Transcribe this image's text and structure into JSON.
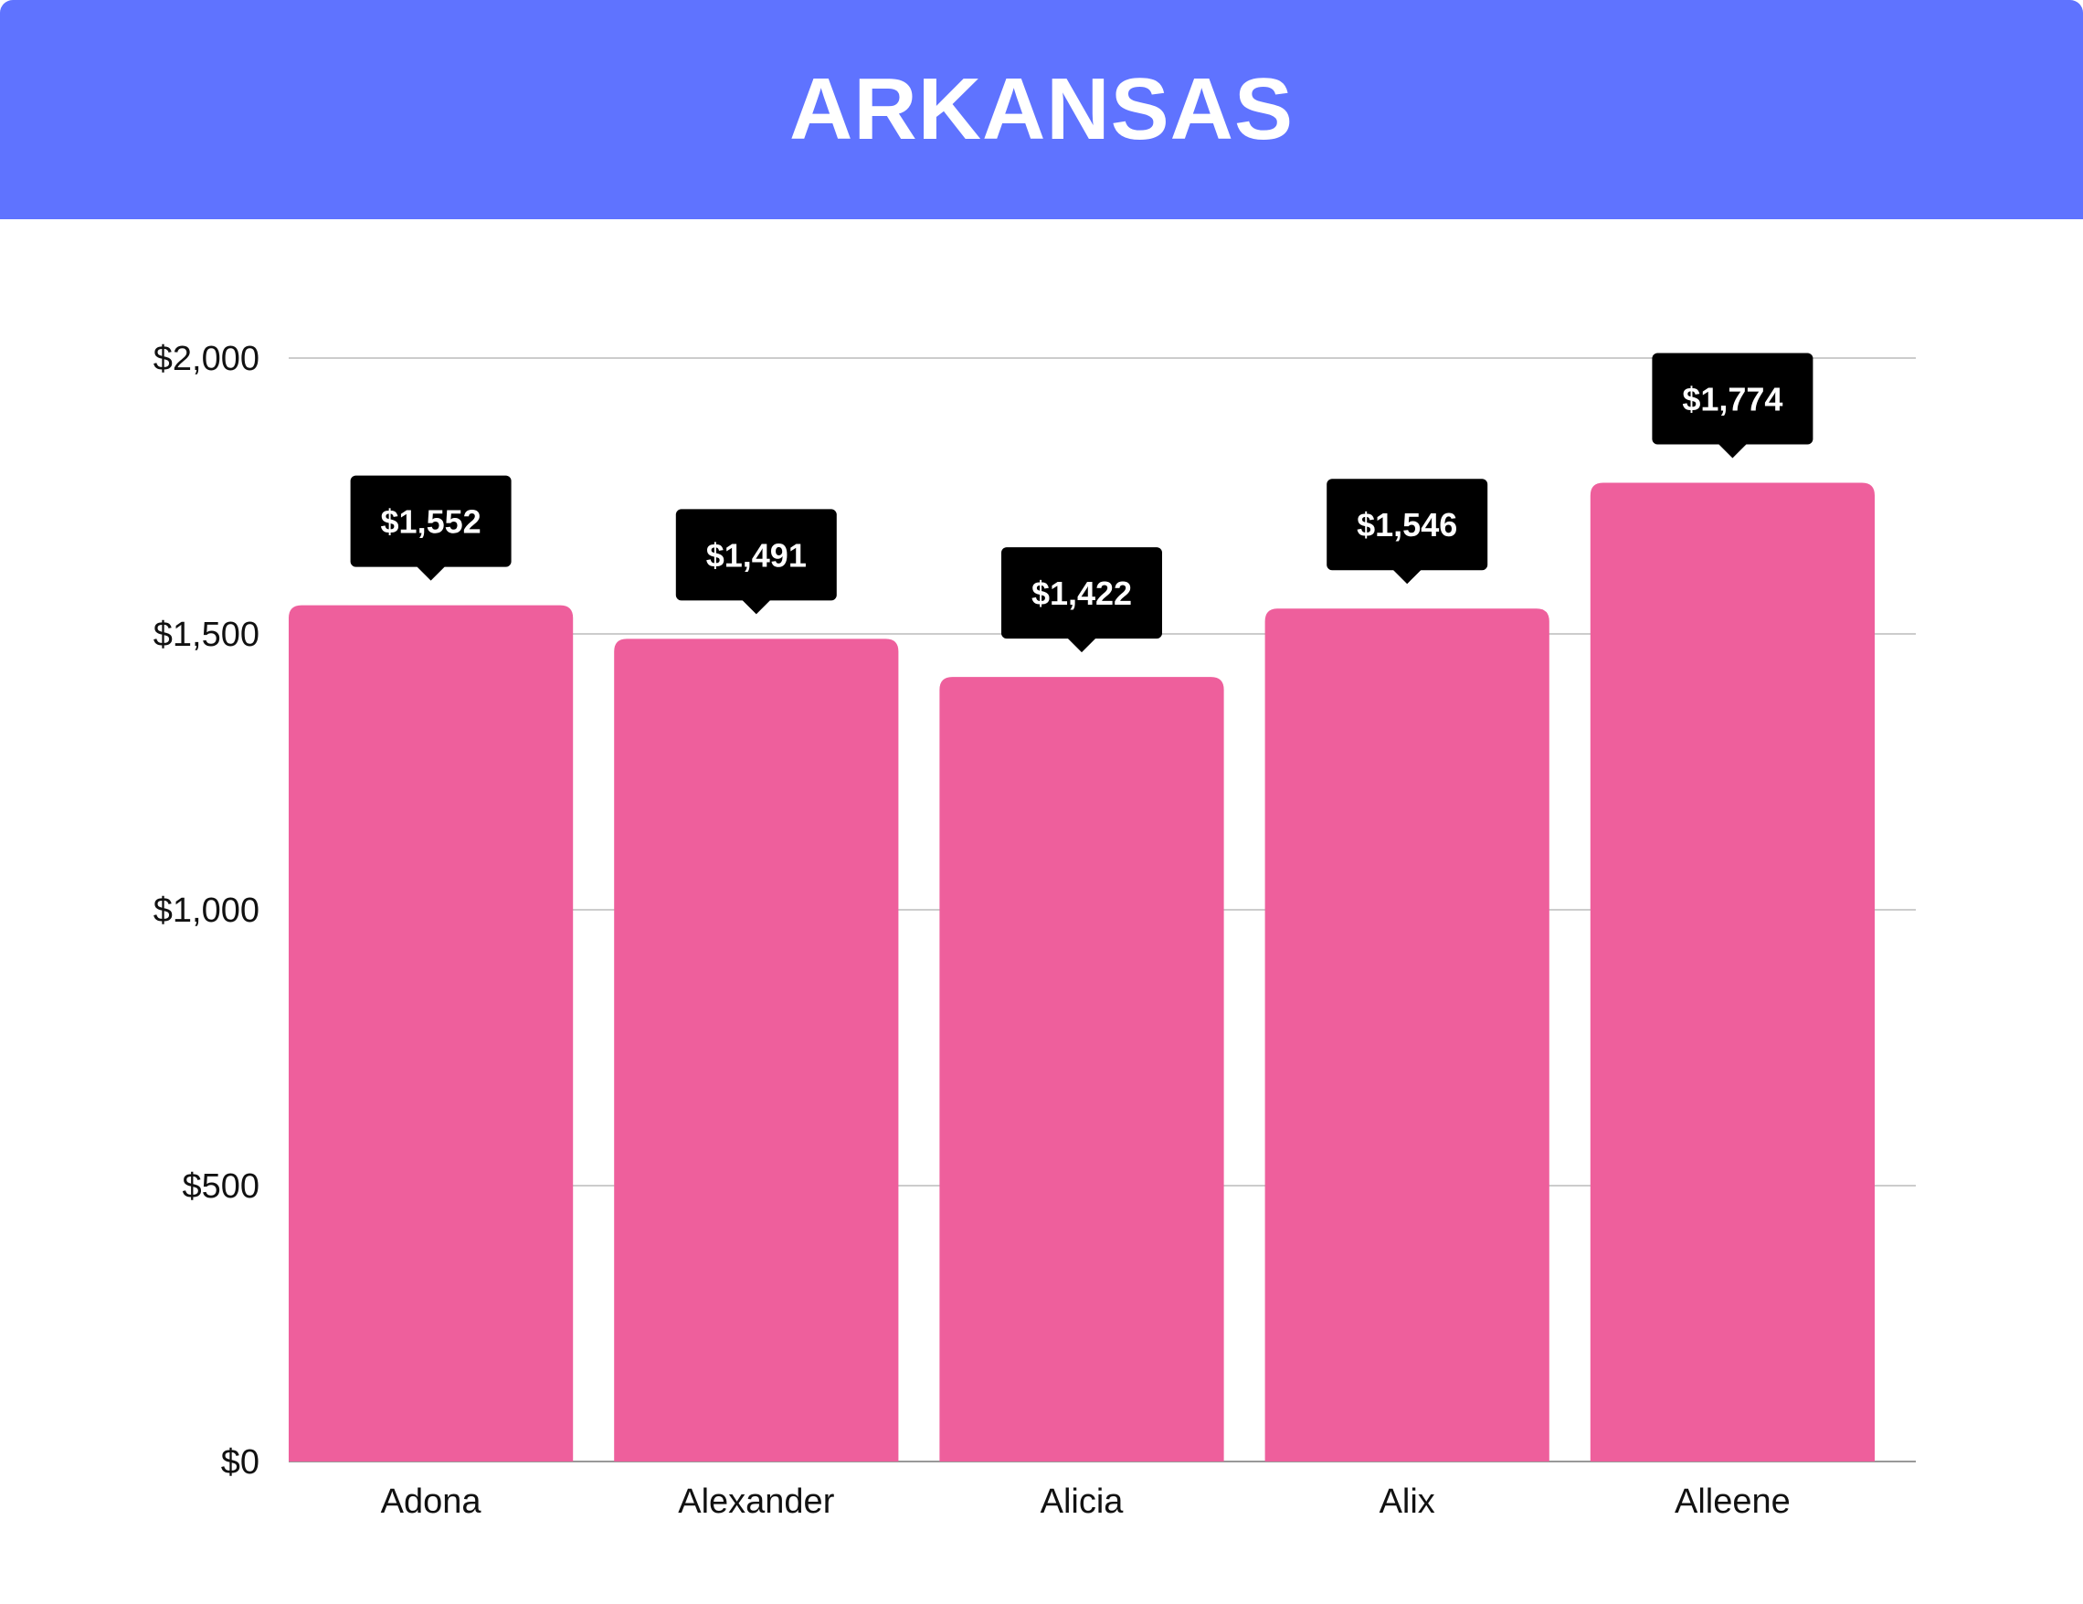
{
  "colors": {
    "header": "#5f73ff",
    "bar": "#ee5f9c",
    "label_bg": "#000000",
    "grid": "#cccccc",
    "axis": "#999999"
  },
  "chart_data": {
    "type": "bar",
    "title": "ARKANSAS",
    "xlabel": "",
    "ylabel": "",
    "categories": [
      "Adona",
      "Alexander",
      "Alicia",
      "Alix",
      "Alleene"
    ],
    "values": [
      1552,
      1491,
      1422,
      1546,
      1774
    ],
    "value_labels": [
      "$1,552",
      "$1,491",
      "$1,422",
      "$1,546",
      "$1,774"
    ],
    "ylim": [
      0,
      2000
    ],
    "yticks": [
      0,
      500,
      1000,
      1500,
      2000
    ],
    "ytick_labels": [
      "$0",
      "$500",
      "$1,000",
      "$1,500",
      "$2,000"
    ],
    "grid": true,
    "legend": "none"
  }
}
